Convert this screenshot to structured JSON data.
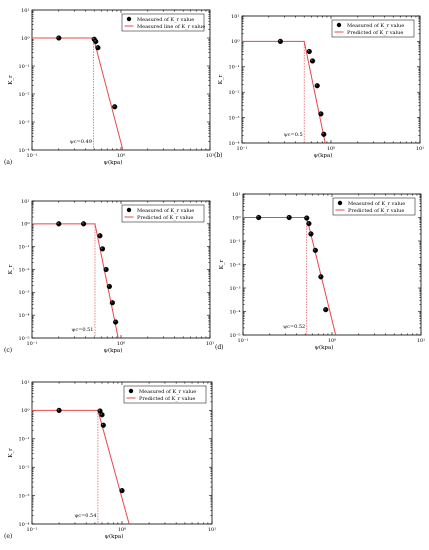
{
  "colors": {
    "line": "#e8484b",
    "marker": "#000000",
    "marker_highlight": "#6a6a6a"
  },
  "chart_data": [
    {
      "type": "scatter",
      "panel_label": "(a)",
      "xscale": "log",
      "yscale": "log",
      "xlim": [
        0.1,
        10
      ],
      "ylim": [
        0.0001,
        10
      ],
      "xticks": [
        "10⁻¹",
        "10⁰",
        "10¹"
      ],
      "yticks": [
        "10⁻⁴",
        "10⁻³",
        "10⁻²",
        "10⁻¹",
        "10⁰",
        "10¹"
      ],
      "xlabel": "ψ(kpa)",
      "ylabel": "K_r",
      "legend": {
        "position": "top-right",
        "markers_label": "Measured of K_r value",
        "line_label": "Measured line of K_r value"
      },
      "annotation": "ψc=0.49",
      "cutoff": 0.49,
      "points": [
        [
          0.2,
          1.0
        ],
        [
          0.5,
          0.9
        ],
        [
          0.52,
          0.75
        ],
        [
          0.55,
          0.45
        ],
        [
          0.85,
          0.0035
        ]
      ],
      "line": [
        [
          0.1,
          1.0
        ],
        [
          0.49,
          1.0
        ],
        [
          1.05,
          0.0001
        ]
      ]
    },
    {
      "type": "scatter",
      "panel_label": "(b)",
      "xscale": "log",
      "yscale": "log",
      "xlim": [
        0.1,
        10
      ],
      "ylim": [
        0.0001,
        10
      ],
      "xticks": [
        "10⁻¹",
        "10⁰",
        "10¹"
      ],
      "yticks": [
        "10⁻⁴",
        "10⁻³",
        "10⁻²",
        "10⁻¹",
        "10⁰",
        "10¹"
      ],
      "xlabel": "ψ(kpa)",
      "ylabel": "K_r",
      "legend": {
        "position": "top-right",
        "markers_label": "Measured of K_r value",
        "line_label": "Predicted of K_r value"
      },
      "annotation": "ψc=0.5",
      "cutoff": 0.5,
      "points": [
        [
          0.27,
          1.0
        ],
        [
          0.57,
          0.4
        ],
        [
          0.62,
          0.17
        ],
        [
          0.7,
          0.018
        ],
        [
          0.77,
          0.0014
        ],
        [
          0.83,
          0.00022
        ]
      ],
      "line": [
        [
          0.1,
          1.0
        ],
        [
          0.5,
          1.0
        ],
        [
          0.86,
          0.0001
        ]
      ]
    },
    {
      "type": "scatter",
      "panel_label": "(c)",
      "xscale": "log",
      "yscale": "log",
      "xlim": [
        0.1,
        10
      ],
      "ylim": [
        1e-05,
        10
      ],
      "xticks": [
        "10⁻¹",
        "10⁰",
        "10¹"
      ],
      "yticks": [
        "10⁻⁵",
        "10⁻⁴",
        "10⁻³",
        "10⁻²",
        "10⁻¹",
        "10⁰",
        "10¹"
      ],
      "xlabel": "ψ(kpa)",
      "ylabel": "K_r",
      "legend": {
        "position": "top-right",
        "markers_label": "Measured of K_r value",
        "line_label": "Predicted of K_r value"
      },
      "annotation": "ψc=0.51",
      "cutoff": 0.51,
      "points": [
        [
          0.2,
          1.0
        ],
        [
          0.38,
          1.0
        ],
        [
          0.58,
          0.3
        ],
        [
          0.62,
          0.08
        ],
        [
          0.68,
          0.01
        ],
        [
          0.74,
          0.0018
        ],
        [
          0.8,
          0.00035
        ],
        [
          0.87,
          5e-05
        ]
      ],
      "line": [
        [
          0.1,
          1.0
        ],
        [
          0.51,
          1.0
        ],
        [
          0.93,
          1e-05
        ]
      ]
    },
    {
      "type": "scatter",
      "panel_label": "(d)",
      "xscale": "log",
      "yscale": "log",
      "xlim": [
        0.1,
        10
      ],
      "ylim": [
        1e-05,
        10
      ],
      "xticks": [
        "10⁻¹",
        "10⁰",
        "10¹"
      ],
      "yticks": [
        "10⁻⁵",
        "10⁻⁴",
        "10⁻³",
        "10⁻²",
        "10⁻¹",
        "10⁰",
        "10¹"
      ],
      "xlabel": "ψ(kpa)",
      "ylabel": "K_r",
      "legend": {
        "position": "top-right",
        "markers_label": "Measured of K_r value",
        "line_label": "Predicted of K_r value"
      },
      "annotation": "ψc=0.52",
      "cutoff": 0.52,
      "points": [
        [
          0.15,
          1.0
        ],
        [
          0.33,
          1.0
        ],
        [
          0.52,
          0.95
        ],
        [
          0.55,
          0.55
        ],
        [
          0.58,
          0.2
        ],
        [
          0.65,
          0.04
        ],
        [
          0.75,
          0.003
        ],
        [
          0.85,
          0.00012
        ]
      ],
      "line": [
        [
          0.1,
          1.0
        ],
        [
          0.52,
          1.0
        ],
        [
          1.1,
          1e-05
        ]
      ]
    },
    {
      "type": "scatter",
      "panel_label": "(e)",
      "xscale": "log",
      "yscale": "log",
      "xlim": [
        0.1,
        10
      ],
      "ylim": [
        0.0001,
        10
      ],
      "xticks": [
        "10⁻¹",
        "10⁰",
        "10¹"
      ],
      "yticks": [
        "10⁻⁴",
        "10⁻³",
        "10⁻²",
        "10⁻¹",
        "10⁰",
        "10¹"
      ],
      "xlabel": "ψ(kpa)",
      "ylabel": "K_r",
      "legend": {
        "position": "top-right",
        "markers_label": "Measured of K_r value",
        "line_label": "Predicted of K_r value"
      },
      "annotation": "ψc=0.54",
      "cutoff": 0.54,
      "points": [
        [
          0.2,
          1.0
        ],
        [
          0.57,
          0.95
        ],
        [
          0.6,
          0.7
        ],
        [
          0.62,
          0.3
        ],
        [
          1.0,
          0.0015
        ]
      ],
      "line": [
        [
          0.1,
          1.0
        ],
        [
          0.54,
          1.0
        ],
        [
          1.2,
          0.0001
        ]
      ]
    }
  ]
}
